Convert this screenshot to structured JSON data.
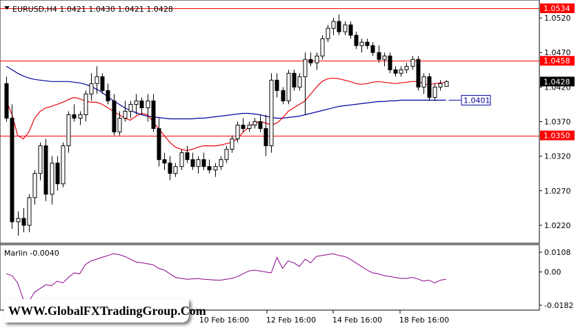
{
  "chart_data": {
    "type": "candlestick",
    "title": "EURUSD,H4  1.0421 1.0430 1.0421 1.0428",
    "symbol": "EURUSD",
    "timeframe": "H4",
    "ohlc_current": {
      "open": 1.0421,
      "high": 1.043,
      "low": 1.0421,
      "close": 1.0428
    },
    "price_axis": {
      "min": 1.0195,
      "max": 1.0545,
      "ticks": [
        "1.0520",
        "1.0470",
        "1.0420",
        "1.0370",
        "1.0320",
        "1.0270",
        "1.0220"
      ]
    },
    "levels": [
      {
        "label": "1.0534",
        "value": 1.0534,
        "color": "#ff0000"
      },
      {
        "label": "1.0458",
        "value": 1.0458,
        "color": "#ff0000"
      },
      {
        "label": "1.0350",
        "value": 1.035,
        "color": "#ff0000"
      }
    ],
    "current_price_label": "1.0428",
    "blue_ma_label": "1.0401",
    "x_ticks": [
      "10 Feb 16:00",
      "12 Feb 16:00",
      "14 Feb 16:00",
      "18 Feb 16:00"
    ],
    "grid": false,
    "candles": [
      [
        1.0425,
        1.0435,
        1.037,
        1.0375
      ],
      [
        1.0375,
        1.0395,
        1.0215,
        1.0225
      ],
      [
        1.0225,
        1.024,
        1.0205,
        1.023
      ],
      [
        1.023,
        1.0245,
        1.021,
        1.022
      ],
      [
        1.022,
        1.0265,
        1.021,
        1.026
      ],
      [
        1.026,
        1.03,
        1.025,
        1.0295
      ],
      [
        1.0295,
        1.034,
        1.0285,
        1.0335
      ],
      [
        1.0335,
        1.0345,
        1.0255,
        1.0265
      ],
      [
        1.0265,
        1.032,
        1.025,
        1.031
      ],
      [
        1.031,
        1.032,
        1.027,
        1.028
      ],
      [
        1.028,
        1.034,
        1.0275,
        1.0335
      ],
      [
        1.0335,
        1.0385,
        1.0325,
        1.038
      ],
      [
        1.038,
        1.0395,
        1.037,
        1.0375
      ],
      [
        1.0375,
        1.0385,
        1.0365,
        1.038
      ],
      [
        1.038,
        1.0415,
        1.037,
        1.041
      ],
      [
        1.041,
        1.044,
        1.04,
        1.0425
      ],
      [
        1.0425,
        1.045,
        1.041,
        1.0435
      ],
      [
        1.0435,
        1.044,
        1.041,
        1.0415
      ],
      [
        1.0415,
        1.0425,
        1.0395,
        1.04
      ],
      [
        1.04,
        1.041,
        1.035,
        1.0355
      ],
      [
        1.0355,
        1.0385,
        1.035,
        1.0375
      ],
      [
        1.0375,
        1.04,
        1.037,
        1.0385
      ],
      [
        1.0385,
        1.04,
        1.0375,
        1.0395
      ],
      [
        1.0395,
        1.041,
        1.038,
        1.04
      ],
      [
        1.04,
        1.0405,
        1.038,
        1.039
      ],
      [
        1.039,
        1.041,
        1.037,
        1.04
      ],
      [
        1.04,
        1.041,
        1.0355,
        1.036
      ],
      [
        1.036,
        1.0375,
        1.0305,
        1.0315
      ],
      [
        1.0315,
        1.0325,
        1.03,
        1.031
      ],
      [
        1.031,
        1.032,
        1.0285,
        1.0295
      ],
      [
        1.0295,
        1.031,
        1.029,
        1.0305
      ],
      [
        1.0305,
        1.033,
        1.03,
        1.0325
      ],
      [
        1.0325,
        1.0335,
        1.031,
        1.0315
      ],
      [
        1.0315,
        1.0325,
        1.03,
        1.0305
      ],
      [
        1.0305,
        1.032,
        1.0295,
        1.0315
      ],
      [
        1.0315,
        1.0325,
        1.03,
        1.0305
      ],
      [
        1.0305,
        1.0315,
        1.0295,
        1.03
      ],
      [
        1.03,
        1.031,
        1.029,
        1.0305
      ],
      [
        1.0305,
        1.032,
        1.03,
        1.0315
      ],
      [
        1.0315,
        1.0335,
        1.031,
        1.033
      ],
      [
        1.033,
        1.035,
        1.0325,
        1.0345
      ],
      [
        1.0345,
        1.037,
        1.034,
        1.0365
      ],
      [
        1.0365,
        1.0375,
        1.0355,
        1.036
      ],
      [
        1.036,
        1.037,
        1.0355,
        1.0365
      ],
      [
        1.0365,
        1.0375,
        1.036,
        1.037
      ],
      [
        1.037,
        1.038,
        1.0355,
        1.036
      ],
      [
        1.036,
        1.038,
        1.032,
        1.0335
      ],
      [
        1.0335,
        1.044,
        1.0325,
        1.043
      ],
      [
        1.043,
        1.044,
        1.0405,
        1.0415
      ],
      [
        1.0415,
        1.042,
        1.0395,
        1.04
      ],
      [
        1.04,
        1.0445,
        1.0395,
        1.044
      ],
      [
        1.044,
        1.0445,
        1.0415,
        1.042
      ],
      [
        1.042,
        1.044,
        1.0415,
        1.0435
      ],
      [
        1.0435,
        1.047,
        1.038,
        1.046
      ],
      [
        1.046,
        1.047,
        1.045,
        1.0455
      ],
      [
        1.0455,
        1.047,
        1.0445,
        1.0465
      ],
      [
        1.0465,
        1.0495,
        1.046,
        1.049
      ],
      [
        1.049,
        1.051,
        1.0485,
        1.0505
      ],
      [
        1.0505,
        1.052,
        1.0495,
        1.0515
      ],
      [
        1.0515,
        1.0525,
        1.0495,
        1.05
      ],
      [
        1.05,
        1.0515,
        1.0495,
        1.051
      ],
      [
        1.051,
        1.0515,
        1.049,
        1.0495
      ],
      [
        1.0495,
        1.05,
        1.0475,
        1.048
      ],
      [
        1.048,
        1.049,
        1.047,
        1.0485
      ],
      [
        1.0485,
        1.049,
        1.0475,
        1.048
      ],
      [
        1.048,
        1.0485,
        1.0465,
        1.047
      ],
      [
        1.047,
        1.048,
        1.0455,
        1.046
      ],
      [
        1.046,
        1.047,
        1.045,
        1.0465
      ],
      [
        1.0465,
        1.047,
        1.044,
        1.0445
      ],
      [
        1.0445,
        1.045,
        1.0435,
        1.044
      ],
      [
        1.044,
        1.045,
        1.0435,
        1.0445
      ],
      [
        1.0445,
        1.0455,
        1.044,
        1.045
      ],
      [
        1.045,
        1.0465,
        1.0445,
        1.046
      ],
      [
        1.046,
        1.0465,
        1.0415,
        1.042
      ],
      [
        1.042,
        1.044,
        1.041,
        1.0435
      ],
      [
        1.0435,
        1.044,
        1.04,
        1.0405
      ],
      [
        1.0405,
        1.0425,
        1.04,
        1.042
      ],
      [
        1.042,
        1.043,
        1.0415,
        1.0425
      ],
      [
        1.0421,
        1.043,
        1.0421,
        1.0428
      ]
    ],
    "red_ma": [
      1.04,
      1.038,
      1.035,
      1.0345,
      1.0355,
      1.0375,
      1.0385,
      1.039,
      1.0392,
      1.0395,
      1.0398,
      1.0402,
      1.0405,
      1.0403,
      1.04,
      1.0398,
      1.0398,
      1.0395,
      1.039,
      1.0385,
      1.038,
      1.0375,
      1.0372,
      1.0378,
      1.0382,
      1.038,
      1.037,
      1.036,
      1.035,
      1.034,
      1.0333,
      1.033,
      1.0328,
      1.033,
      1.0333,
      1.0335,
      1.0335,
      1.0335,
      1.0336,
      1.0338,
      1.034,
      1.0345,
      1.0355,
      1.0362,
      1.0368,
      1.037,
      1.0368,
      1.0365,
      1.0368,
      1.0375,
      1.0385,
      1.039,
      1.0395,
      1.04,
      1.041,
      1.042,
      1.0428,
      1.0432,
      1.0433,
      1.0432,
      1.043,
      1.0428,
      1.0425,
      1.0424,
      1.0425,
      1.0427,
      1.0428,
      1.0427,
      1.0426,
      1.0425,
      1.0426,
      1.0427,
      1.0428,
      1.0428,
      1.0425,
      1.0423,
      1.0425,
      1.0426,
      1.0427
    ],
    "blue_ma": [
      1.045,
      1.0445,
      1.044,
      1.0436,
      1.0433,
      1.0431,
      1.043,
      1.0429,
      1.0428,
      1.0428,
      1.0428,
      1.0428,
      1.0427,
      1.0426,
      1.0424,
      1.0421,
      1.0417,
      1.0412,
      1.0406,
      1.04,
      1.0395,
      1.039,
      1.0386,
      1.0383,
      1.038,
      1.0378,
      1.0377,
      1.0376,
      1.0375,
      1.0374,
      1.0374,
      1.0374,
      1.0374,
      1.0374,
      1.0375,
      1.0375,
      1.0376,
      1.0377,
      1.0378,
      1.0379,
      1.038,
      1.0381,
      1.0382,
      1.0382,
      1.0381,
      1.038,
      1.0378,
      1.0376,
      1.0375,
      1.0375,
      1.0376,
      1.0377,
      1.0378,
      1.038,
      1.0382,
      1.0384,
      1.0386,
      1.0388,
      1.039,
      1.0392,
      1.0393,
      1.0394,
      1.0395,
      1.0396,
      1.0397,
      1.0398,
      1.0399,
      1.0399,
      1.04,
      1.04,
      1.0401,
      1.0401,
      1.0401,
      1.0401,
      1.0401,
      1.0401,
      1.0401,
      1.0401,
      1.0401
    ],
    "indicator": {
      "name": "Marlin",
      "value_label": "-0.0040",
      "title": "Marlin -0.0040",
      "range": [
        -0.0182,
        0.0108
      ],
      "ticks": [
        "0.0108",
        "0.00",
        "-0.0182"
      ],
      "values": [
        -0.001,
        -0.002,
        -0.006,
        -0.015,
        -0.016,
        -0.011,
        -0.009,
        -0.007,
        -0.0075,
        -0.005,
        -0.006,
        -0.003,
        -0.0005,
        -0.001,
        0.004,
        0.006,
        0.007,
        0.008,
        0.009,
        0.01,
        0.0095,
        0.0085,
        0.007,
        0.0055,
        0.005,
        0.0045,
        0.004,
        0.002,
        0.001,
        -0.001,
        -0.003,
        -0.0035,
        -0.004,
        -0.0038,
        -0.0036,
        -0.004,
        -0.0042,
        -0.0044,
        -0.0045,
        -0.004,
        -0.0035,
        -0.0025,
        -0.001,
        0.0005,
        0.001,
        0.0005,
        0.0,
        -0.0005,
        0.008,
        0.002,
        0.006,
        0.005,
        0.003,
        0.007,
        0.005,
        0.0085,
        0.009,
        0.0095,
        0.01,
        0.009,
        0.0085,
        0.007,
        0.005,
        0.003,
        0.001,
        -0.0005,
        -0.001,
        -0.002,
        -0.0025,
        -0.003,
        -0.0035,
        -0.0035,
        -0.003,
        -0.0038,
        -0.005,
        -0.0045,
        -0.006,
        -0.0045,
        -0.004
      ],
      "color": "#8b008b"
    },
    "colors": {
      "red_ma": "#e8000b",
      "blue_ma": "#0000a0",
      "levels": "#ff0000",
      "candle": "#000000",
      "indicator": "#8b008b"
    }
  },
  "watermark": "WWW.GlobalFXTradingGroup.Com"
}
